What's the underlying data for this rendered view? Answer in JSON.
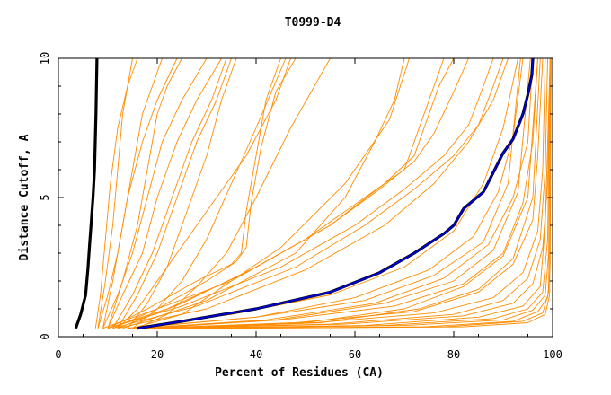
{
  "chart_data": {
    "type": "line",
    "title": "T0999-D4",
    "xlabel": "Percent of Residues (CA)",
    "ylabel": "Distance Cutoff, A",
    "xlim": [
      0,
      100
    ],
    "ylim": [
      0,
      10
    ],
    "x_ticks": [
      0,
      20,
      40,
      60,
      80,
      100
    ],
    "y_ticks": [
      0,
      5,
      10
    ],
    "x_tick_labels": [
      "0",
      "20",
      "40",
      "60",
      "80",
      "100"
    ],
    "y_tick_labels": [
      "0",
      "5",
      "10"
    ],
    "grid": false,
    "colors": {
      "orange": "#ff8c00",
      "black": "#000000",
      "blue": "#0000cc"
    },
    "series": [
      {
        "color": "#ff8c00",
        "x": [
          7.5,
          8.5,
          9.5,
          10.5,
          12,
          14,
          16
        ],
        "y": [
          0.3,
          1.5,
          3.5,
          5.5,
          7.5,
          9,
          10
        ]
      },
      {
        "color": "#ff8c00",
        "x": [
          8,
          10,
          12,
          14,
          17,
          20,
          24
        ],
        "y": [
          0.3,
          1.5,
          3,
          5,
          7,
          8.5,
          10
        ]
      },
      {
        "color": "#ff8c00",
        "x": [
          9,
          12,
          15,
          18,
          21,
          25,
          30
        ],
        "y": [
          0.3,
          1.5,
          3,
          5,
          7,
          8.5,
          10
        ]
      },
      {
        "color": "#ff8c00",
        "x": [
          10,
          13,
          17,
          20,
          24,
          28,
          33
        ],
        "y": [
          0.3,
          1.5,
          3,
          5,
          7,
          8.5,
          10
        ]
      },
      {
        "color": "#ff8c00",
        "x": [
          11,
          15,
          19,
          23,
          27,
          31,
          34
        ],
        "y": [
          0.3,
          1.5,
          3,
          5,
          7,
          8.5,
          10
        ]
      },
      {
        "color": "#ff8c00",
        "x": [
          12,
          16,
          20,
          24,
          28,
          32,
          35
        ],
        "y": [
          0.3,
          1.5,
          3,
          5,
          7,
          8.5,
          10
        ]
      },
      {
        "color": "#ff8c00",
        "x": [
          8,
          9.5,
          11,
          12,
          13,
          14,
          15
        ],
        "y": [
          0.3,
          2,
          4,
          6,
          8,
          9,
          10
        ]
      },
      {
        "color": "#ff8c00",
        "x": [
          9,
          11,
          13,
          15,
          17,
          19,
          21
        ],
        "y": [
          0.3,
          2,
          4,
          6,
          8,
          9,
          10
        ]
      },
      {
        "color": "#ff8c00",
        "x": [
          10,
          13,
          16,
          18,
          20,
          22,
          25
        ],
        "y": [
          0.3,
          2,
          4,
          6,
          8,
          9,
          10
        ]
      },
      {
        "color": "#ff8c00",
        "x": [
          14,
          18,
          22,
          26,
          30,
          33,
          36
        ],
        "y": [
          0.3,
          1.2,
          2.5,
          4.5,
          6.5,
          8.5,
          10
        ]
      },
      {
        "color": "#ff8c00",
        "x": [
          15,
          20,
          25,
          30,
          35,
          40,
          46
        ],
        "y": [
          0.3,
          1,
          2,
          3.5,
          5.5,
          7.5,
          10
        ]
      },
      {
        "color": "#ff8c00",
        "x": [
          16,
          22,
          28,
          34,
          40,
          47,
          55
        ],
        "y": [
          0.3,
          0.8,
          1.8,
          3,
          5,
          7.5,
          10
        ]
      },
      {
        "color": "#ff8c00",
        "x": [
          12,
          16,
          22,
          30,
          38,
          44,
          47
        ],
        "y": [
          0.3,
          1,
          2.5,
          4.5,
          6.5,
          8.5,
          10
        ]
      },
      {
        "color": "#ff8c00",
        "x": [
          10,
          18,
          28,
          35,
          37,
          38,
          40,
          42,
          45
        ],
        "y": [
          0.3,
          1,
          2,
          2.6,
          3,
          4.5,
          6.5,
          8.5,
          10
        ]
      },
      {
        "color": "#ff8c00",
        "x": [
          11,
          20,
          30,
          36,
          38,
          39,
          41,
          44,
          48
        ],
        "y": [
          0.3,
          1,
          2,
          2.7,
          3.2,
          4.8,
          6.8,
          8.8,
          10
        ]
      },
      {
        "color": "#ff8c00",
        "x": [
          9,
          20,
          35,
          50,
          62,
          70,
          72,
          76,
          78
        ],
        "y": [
          0.3,
          1,
          2,
          3.5,
          5,
          6,
          7,
          9,
          10
        ]
      },
      {
        "color": "#ff8c00",
        "x": [
          10,
          22,
          38,
          55,
          66,
          72,
          74,
          77,
          80
        ],
        "y": [
          0.3,
          1,
          2.3,
          4,
          5.5,
          6.5,
          7.5,
          9,
          10
        ]
      },
      {
        "color": "#ff8c00",
        "x": [
          12,
          25,
          40,
          55,
          65,
          72,
          76,
          80,
          83
        ],
        "y": [
          0.3,
          1.2,
          2.5,
          4,
          5.3,
          6.3,
          7.3,
          8.8,
          10
        ]
      },
      {
        "color": "#ff8c00",
        "x": [
          10,
          25,
          45,
          60,
          70,
          78,
          83,
          86,
          88
        ],
        "y": [
          0.3,
          1.1,
          2.5,
          4,
          5.3,
          6.5,
          7.6,
          9,
          10
        ]
      },
      {
        "color": "#ff8c00",
        "x": [
          11,
          28,
          48,
          62,
          72,
          80,
          85,
          88,
          90
        ],
        "y": [
          0.3,
          1.1,
          2.5,
          4,
          5.3,
          6.5,
          7.6,
          9,
          10
        ]
      },
      {
        "color": "#ff8c00",
        "x": [
          12,
          30,
          50,
          66,
          76,
          83,
          88,
          91
        ],
        "y": [
          0.3,
          1,
          2.4,
          4,
          5.5,
          7,
          8.5,
          10
        ]
      },
      {
        "color": "#ff8c00",
        "x": [
          13,
          30,
          48,
          58,
          64,
          68,
          70
        ],
        "y": [
          0.3,
          1.3,
          3,
          5,
          7,
          8.5,
          10
        ]
      },
      {
        "color": "#ff8c00",
        "x": [
          14,
          35,
          55,
          70,
          80,
          86,
          90,
          93
        ],
        "y": [
          0.3,
          0.8,
          1.5,
          2.5,
          3.8,
          5.5,
          7.5,
          10
        ]
      },
      {
        "color": "#ff8c00",
        "x": [
          15,
          40,
          60,
          75,
          84,
          89,
          92,
          94
        ],
        "y": [
          0.3,
          0.7,
          1.4,
          2.4,
          3.6,
          5.2,
          7.2,
          10
        ]
      },
      {
        "color": "#ff8c00",
        "x": [
          16,
          42,
          64,
          78,
          87,
          92,
          95,
          96
        ],
        "y": [
          0.3,
          0.6,
          1.2,
          2.1,
          3.3,
          5,
          7,
          10
        ]
      },
      {
        "color": "#ff8c00",
        "x": [
          16,
          45,
          68,
          82,
          90,
          94,
          96,
          97
        ],
        "y": [
          0.3,
          0.6,
          1.1,
          1.9,
          3,
          4.8,
          7,
          10
        ]
      },
      {
        "color": "#ff8c00",
        "x": [
          17,
          48,
          72,
          85,
          92,
          96,
          97,
          98
        ],
        "y": [
          0.3,
          0.5,
          0.9,
          1.6,
          2.6,
          4.2,
          6.5,
          10
        ]
      },
      {
        "color": "#ff8c00",
        "x": [
          18,
          52,
          76,
          88,
          94,
          97,
          98,
          98.5
        ],
        "y": [
          0.3,
          0.5,
          0.85,
          1.4,
          2.3,
          3.8,
          6,
          10
        ]
      },
      {
        "color": "#ff8c00",
        "x": [
          19,
          55,
          80,
          90,
          95,
          97.5,
          98.5,
          99
        ],
        "y": [
          0.3,
          0.45,
          0.8,
          1.3,
          2.1,
          3.5,
          6,
          10
        ]
      },
      {
        "color": "#ff8c00",
        "x": [
          20,
          58,
          82,
          92,
          96,
          98,
          99,
          99.5
        ],
        "y": [
          0.3,
          0.45,
          0.75,
          1.2,
          1.9,
          3.2,
          5.5,
          10
        ]
      },
      {
        "color": "#ff8c00",
        "x": [
          22,
          62,
          85,
          94,
          97.5,
          98.5,
          99.5
        ],
        "y": [
          0.3,
          0.4,
          0.7,
          1.1,
          1.8,
          4,
          10
        ]
      },
      {
        "color": "#ff8c00",
        "x": [
          24,
          66,
          88,
          95,
          98,
          99,
          99.5
        ],
        "y": [
          0.3,
          0.4,
          0.65,
          1,
          1.6,
          3.5,
          10
        ]
      },
      {
        "color": "#ff8c00",
        "x": [
          26,
          70,
          90,
          96,
          98.5,
          99.2,
          99.6
        ],
        "y": [
          0.3,
          0.4,
          0.6,
          0.95,
          1.5,
          3,
          10
        ]
      },
      {
        "color": "#ff8c00",
        "x": [
          28,
          74,
          92,
          97,
          99,
          99.5,
          99.7
        ],
        "y": [
          0.3,
          0.35,
          0.55,
          0.9,
          1.4,
          2.5,
          10
        ]
      },
      {
        "color": "#ff8c00",
        "x": [
          30,
          78,
          94,
          98,
          99.2,
          99.6
        ],
        "y": [
          0.3,
          0.35,
          0.55,
          0.85,
          1.6,
          10
        ]
      },
      {
        "color": "#ff8c00",
        "x": [
          33,
          82,
          95,
          98.5,
          99.4,
          99.7
        ],
        "y": [
          0.3,
          0.35,
          0.5,
          0.8,
          1.5,
          10
        ]
      },
      {
        "color": "#ff8c00",
        "x": [
          21,
          50,
          70,
          82,
          90,
          95,
          97
        ],
        "y": [
          0.3,
          0.5,
          1,
          1.8,
          2.9,
          5,
          10
        ]
      },
      {
        "color": "#ff8c00",
        "x": [
          23,
          53,
          73,
          85,
          92,
          96,
          97.5
        ],
        "y": [
          0.3,
          0.5,
          1,
          1.7,
          2.8,
          5,
          10
        ]
      },
      {
        "color": "#ff8c00",
        "x": [
          14,
          40,
          62,
          76,
          86,
          91,
          93.5
        ],
        "y": [
          0.3,
          0.7,
          1.3,
          2.2,
          3.4,
          5.5,
          10
        ]
      },
      {
        "color": "#ff8c00",
        "x": [
          18,
          44,
          66,
          80,
          88,
          93,
          95.5
        ],
        "y": [
          0.3,
          0.6,
          1.2,
          2,
          3.1,
          5.2,
          10
        ]
      },
      {
        "color": "#ff8c00",
        "x": [
          15,
          25,
          45,
          58,
          67,
          71
        ],
        "y": [
          0.3,
          0.8,
          3.2,
          5.5,
          7.8,
          10
        ]
      },
      {
        "color": "#000000",
        "x": [
          3.5,
          4.5,
          5.5,
          6.0,
          6.3,
          6.6,
          7.0,
          7.3,
          7.6,
          7.8
        ],
        "y": [
          0.3,
          0.8,
          1.5,
          2.5,
          3.3,
          4.0,
          5.0,
          6.0,
          8.0,
          10.0
        ]
      },
      {
        "color": "#000000",
        "x": [
          16,
          25,
          40,
          55,
          65,
          72,
          78,
          80,
          82,
          86,
          88,
          90,
          92,
          94,
          95,
          95.8,
          96
        ],
        "y": [
          0.3,
          0.55,
          1.0,
          1.6,
          2.3,
          3.0,
          3.7,
          4.0,
          4.6,
          5.2,
          5.9,
          6.6,
          7.1,
          8.0,
          8.7,
          9.4,
          10
        ]
      },
      {
        "color": "#0000cc",
        "x": [
          16,
          25,
          40,
          55,
          65,
          72,
          78,
          80,
          82,
          86,
          88,
          90,
          92,
          94,
          95,
          95.8,
          96
        ],
        "y": [
          0.3,
          0.55,
          1.0,
          1.6,
          2.3,
          3.0,
          3.7,
          4.0,
          4.6,
          5.2,
          5.9,
          6.6,
          7.1,
          8.0,
          8.7,
          9.4,
          10
        ]
      }
    ]
  }
}
